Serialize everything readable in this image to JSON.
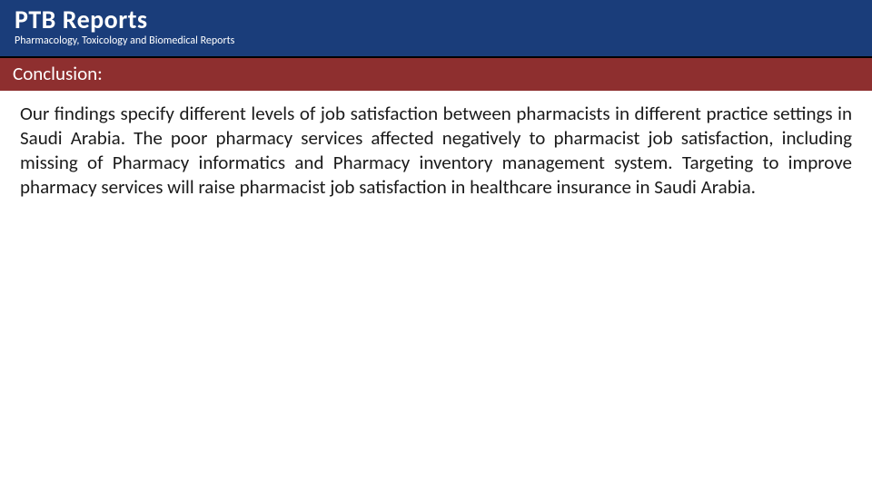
{
  "header": {
    "brand_title": "PTB Reports",
    "brand_subtitle": "Pharmacology, Toxicology and Biomedical Reports",
    "background_color": "#1a3d7a",
    "title_color": "#ffffff",
    "subtitle_color": "#ffffff",
    "title_fontsize": 28,
    "subtitle_fontsize": 12
  },
  "section": {
    "label": "Conclusion:",
    "background_color": "#8e2f2f",
    "text_color": "#ffffff",
    "fontsize": 21
  },
  "body": {
    "text": "Our findings specify different levels of job satisfaction between pharmacists in different practice settings in Saudi Arabia. The poor pharmacy services affected negatively to pharmacist job satisfaction, including missing of Pharmacy informatics and Pharmacy inventory management system. Targeting to improve pharmacy services will raise pharmacist job satisfaction in healthcare insurance in Saudi Arabia.",
    "text_color": "#1a1a1a",
    "fontsize": 21
  },
  "page": {
    "background_color": "#ffffff"
  }
}
